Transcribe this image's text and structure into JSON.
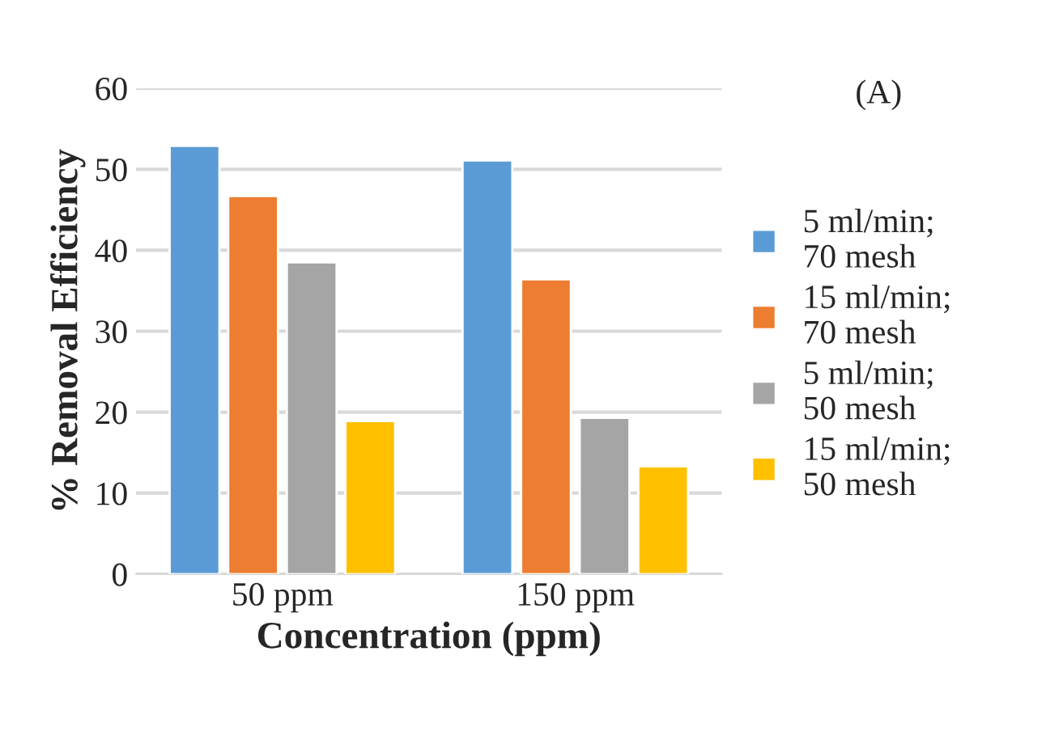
{
  "chart_data": {
    "type": "bar",
    "xlabel": "Concentration (ppm)",
    "ylabel": "% Removal Efficiency",
    "annotations": [
      "(A)"
    ],
    "categories": [
      "50 ppm",
      "150 ppm"
    ],
    "series": [
      {
        "name": "5 ml/min;\n70 mesh",
        "color": "#5b9bd5",
        "values": [
          52.9,
          51.1
        ]
      },
      {
        "name": "15 ml/min;\n70 mesh",
        "color": "#ed7d31",
        "values": [
          46.7,
          36.4
        ]
      },
      {
        "name": "5 ml/min;\n50 mesh",
        "color": "#a5a5a5",
        "values": [
          38.5,
          19.3
        ]
      },
      {
        "name": "15 ml/min;\n50 mesh",
        "color": "#ffc000",
        "values": [
          18.9,
          13.3
        ]
      }
    ],
    "ylim": [
      0,
      60
    ],
    "yticks": [
      0,
      10,
      20,
      30,
      40,
      50,
      60
    ],
    "grid": "y",
    "legend": "right"
  }
}
